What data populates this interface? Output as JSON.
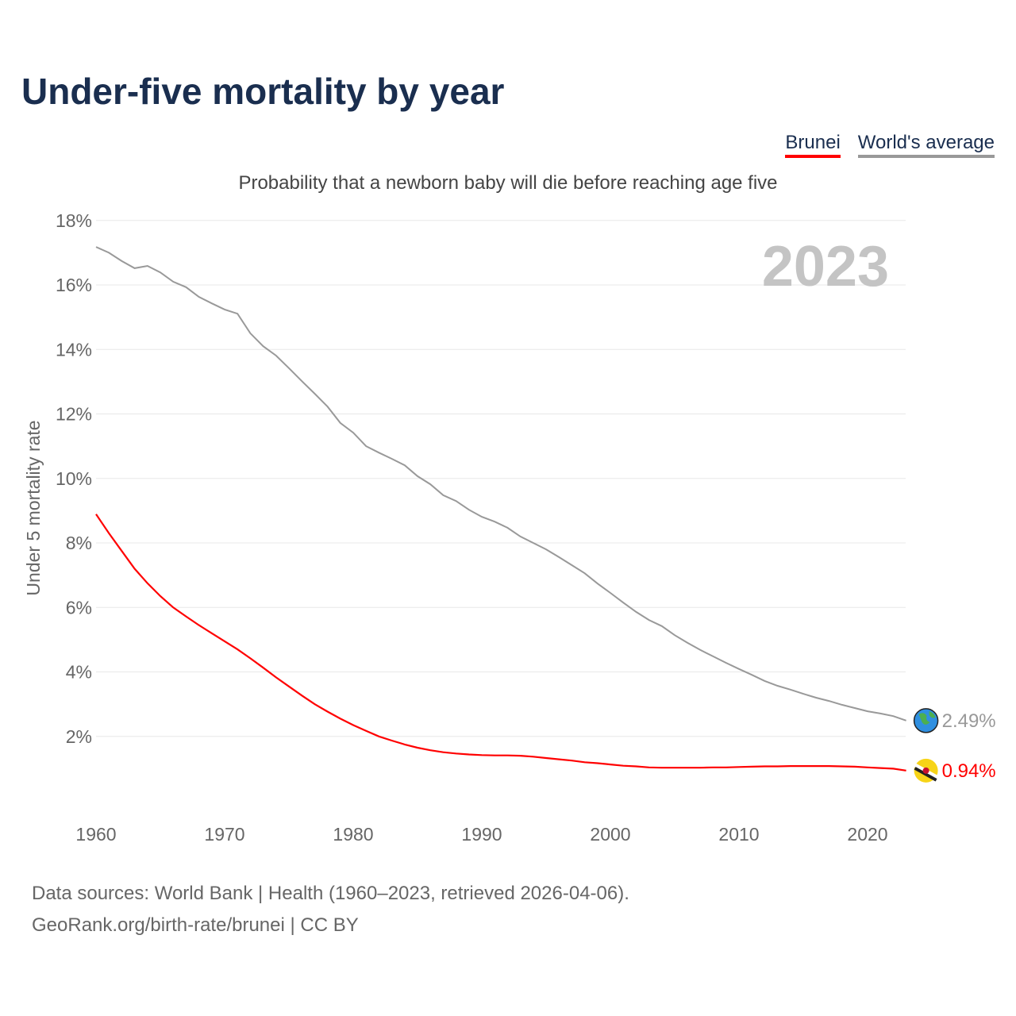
{
  "title": "Under-five mortality by year",
  "legend": {
    "brunei": "Brunei",
    "world": "World's average"
  },
  "colors": {
    "brunei": "#ff0000",
    "world": "#999999",
    "title": "#1a2e4f"
  },
  "source_line1": "Data sources: World Bank | Health (1960–2023, retrieved 2026-04-06).",
  "source_line2": "GeoRank.org/birth-rate/brunei | CC BY",
  "chart_data": {
    "type": "line",
    "title": "Probability that a newborn baby will die before reaching age five",
    "ylabel": "Under 5 mortality rate",
    "xlabel": "",
    "year_watermark": "2023",
    "ylim": [
      0,
      18
    ],
    "xlim": [
      1960,
      2023
    ],
    "yticks": [
      "2%",
      "4%",
      "6%",
      "8%",
      "10%",
      "12%",
      "14%",
      "16%",
      "18%"
    ],
    "xticks": [
      "1960",
      "1970",
      "1980",
      "1990",
      "2000",
      "2010",
      "2020"
    ],
    "grid": true,
    "x_start": 1960,
    "series": [
      {
        "name": "World's average",
        "end_label": "2.49%",
        "end_icon": "globe-icon",
        "values": [
          17.18,
          17.0,
          16.74,
          16.52,
          16.59,
          16.39,
          16.1,
          15.93,
          15.63,
          15.43,
          15.24,
          15.11,
          14.5,
          14.1,
          13.81,
          13.42,
          13.02,
          12.63,
          12.23,
          11.72,
          11.42,
          11.0,
          10.8,
          10.61,
          10.41,
          10.07,
          9.82,
          9.48,
          9.3,
          9.03,
          8.81,
          8.66,
          8.47,
          8.2,
          8.0,
          7.8,
          7.56,
          7.31,
          7.06,
          6.74,
          6.45,
          6.15,
          5.86,
          5.61,
          5.42,
          5.14,
          4.9,
          4.68,
          4.48,
          4.28,
          4.09,
          3.91,
          3.72,
          3.57,
          3.45,
          3.32,
          3.2,
          3.1,
          2.98,
          2.88,
          2.78,
          2.71,
          2.63,
          2.49
        ]
      },
      {
        "name": "Brunei",
        "end_label": "0.94%",
        "end_icon": "brunei-flag-icon",
        "values": [
          8.89,
          8.3,
          7.75,
          7.2,
          6.75,
          6.35,
          6.0,
          5.72,
          5.45,
          5.2,
          4.95,
          4.7,
          4.42,
          4.13,
          3.83,
          3.55,
          3.27,
          3.0,
          2.77,
          2.55,
          2.35,
          2.17,
          2.0,
          1.87,
          1.75,
          1.65,
          1.57,
          1.51,
          1.47,
          1.44,
          1.42,
          1.41,
          1.41,
          1.4,
          1.37,
          1.33,
          1.29,
          1.25,
          1.2,
          1.17,
          1.13,
          1.09,
          1.07,
          1.04,
          1.03,
          1.03,
          1.03,
          1.03,
          1.04,
          1.04,
          1.05,
          1.06,
          1.07,
          1.07,
          1.08,
          1.08,
          1.08,
          1.08,
          1.07,
          1.06,
          1.04,
          1.02,
          1.0,
          0.94
        ]
      }
    ]
  }
}
